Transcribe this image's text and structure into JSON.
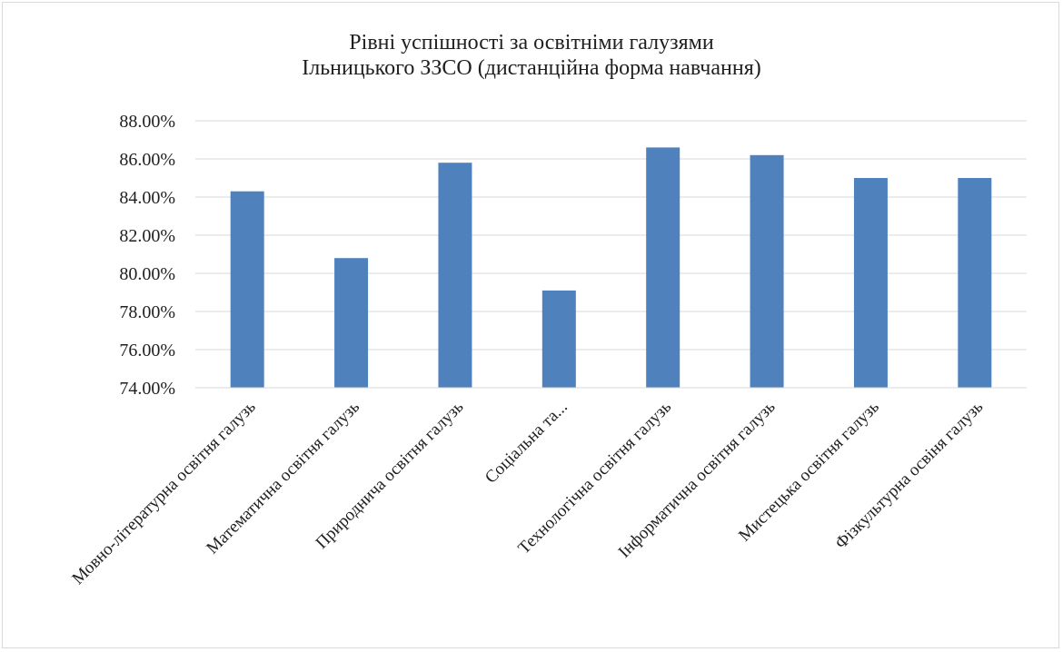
{
  "chart_data": {
    "type": "bar",
    "title": [
      "Рівні успішності за освітніми галузями",
      "Ільницького ЗЗСО (дистанційна форма навчання)"
    ],
    "categories": [
      "Мовно-літературна освітня галузь",
      "Математична освітня галузь",
      "Природнича освітня галузь",
      "Соціальна та...",
      "Технологічна освітня галузь",
      "Інформатична освітня галузь",
      "Мистецька освітня галузь",
      "Фізкультурна освіня галузь"
    ],
    "values": [
      84.3,
      80.8,
      85.8,
      79.1,
      86.6,
      86.2,
      85.0,
      85.0
    ],
    "ylim": [
      74,
      88
    ],
    "yticks": [
      "74.00%",
      "76.00%",
      "78.00%",
      "80.00%",
      "82.00%",
      "84.00%",
      "86.00%",
      "88.00%"
    ],
    "xlabel": "",
    "ylabel": "",
    "grid": true,
    "legend": "none",
    "bar_color": "#4f81bd",
    "grid_color": "#d9d9d9"
  }
}
